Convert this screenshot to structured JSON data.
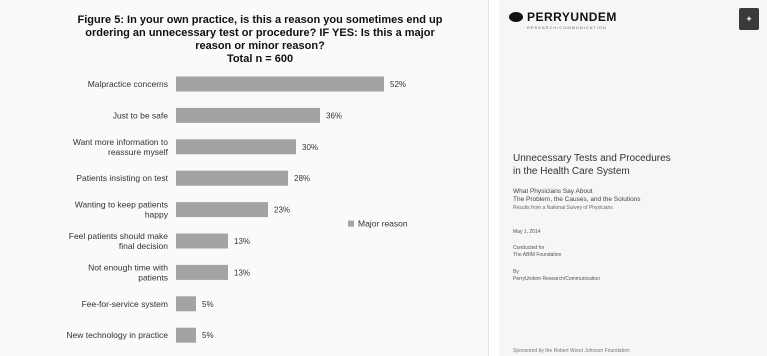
{
  "chart_data": {
    "type": "bar",
    "orientation": "horizontal",
    "title_lines": [
      "Figure 5: In your own practice, is this a reason you sometimes end up",
      "ordering an unnecessary test or procedure? IF YES: Is this a major",
      "reason or minor reason?",
      "Total n = 600"
    ],
    "categories": [
      [
        "Malpractice concerns"
      ],
      [
        "Just to be safe"
      ],
      [
        "Want more information to",
        "reassure myself"
      ],
      [
        "Patients insisting on test"
      ],
      [
        "Wanting to keep patients",
        "happy"
      ],
      [
        "Feel patients should make",
        "final decision"
      ],
      [
        "Not enough time with",
        "patients"
      ],
      [
        "Fee-for-service system"
      ],
      [
        "New technology in practice"
      ]
    ],
    "series": [
      {
        "name": "Major reason",
        "values": [
          52,
          36,
          30,
          28,
          23,
          13,
          13,
          5,
          5
        ]
      }
    ],
    "value_labels": [
      "52%",
      "36%",
      "30%",
      "28%",
      "23%",
      "13%",
      "13%",
      "5%",
      "5%"
    ],
    "xlim": [
      0,
      60
    ],
    "legend_position": "right",
    "bar_color": "#a3a3a3",
    "grid": false
  },
  "document": {
    "logo_text": "PERRYUNDEM",
    "logo_subtext": "RESEARCH/COMMUNICATION",
    "title_lines": [
      "Unnecessary Tests and Procedures",
      "in the Health Care System"
    ],
    "subtitle_lines": [
      "What Physicians Say About",
      "The Problem, the Causes, and the Solutions"
    ],
    "subtitle_small": "Results from a National Survey of Physicians",
    "date": "May 1, 2014",
    "conducted_lines": [
      "Conducted for",
      "The ABIM Foundation"
    ],
    "by_lines": [
      "By",
      "PerryUndem Research/Communication"
    ],
    "footer": "Sponsored by the Robert Wood Johnson Foundation"
  }
}
